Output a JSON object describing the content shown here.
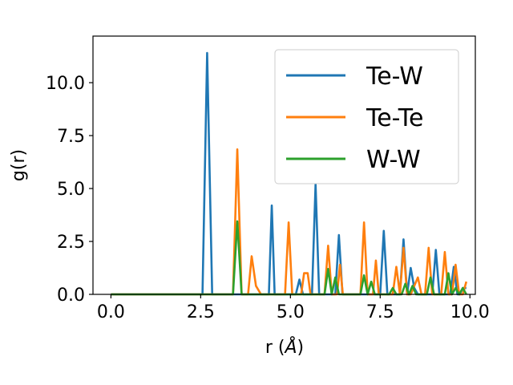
{
  "chart_data": {
    "type": "line",
    "xlabel": "r (",
    "xlabel_symbol": "Å",
    "xlabel_close": ")",
    "ylabel": "g(r)",
    "xlim": [
      -0.5,
      10.15
    ],
    "ylim": [
      0,
      12.2
    ],
    "xticks": [
      0,
      2.5,
      5,
      7.5,
      10
    ],
    "xtick_labels": [
      "0.0",
      "2.5",
      "5.0",
      "7.5",
      "10.0"
    ],
    "yticks": [
      0,
      2.5,
      5,
      7.5,
      10
    ],
    "ytick_labels": [
      "0.0",
      "2.5",
      "5.0",
      "7.5",
      "10.0"
    ],
    "grid": false,
    "legend_position": "top-right",
    "series": [
      {
        "name": "Te-W",
        "color": "#1f77b4",
        "x": [
          0,
          2.55,
          2.68,
          2.82,
          4.4,
          4.48,
          4.56,
          5.15,
          5.25,
          5.35,
          5.6,
          5.7,
          5.8,
          6.25,
          6.35,
          6.45,
          7.5,
          7.6,
          7.7,
          8.05,
          8.15,
          8.25,
          8.35,
          8.45,
          8.55,
          8.95,
          9.05,
          9.15,
          9.45,
          9.55,
          9.65,
          9.72,
          9.8,
          9.9
        ],
        "y": [
          0,
          0,
          11.4,
          0,
          0,
          4.2,
          0,
          0,
          0.7,
          0,
          0,
          5.2,
          0,
          0,
          2.8,
          0,
          0,
          3.0,
          0,
          0,
          2.6,
          0,
          1.25,
          0.3,
          0,
          0,
          2.1,
          0,
          0,
          1.3,
          0,
          0,
          0.3,
          0.3
        ]
      },
      {
        "name": "Te-Te",
        "color": "#ff7f0e",
        "x": [
          0,
          3.4,
          3.52,
          3.64,
          3.82,
          3.92,
          4.04,
          4.18,
          4.85,
          4.95,
          5.05,
          5.3,
          5.38,
          5.48,
          5.56,
          5.95,
          6.05,
          6.15,
          6.3,
          6.38,
          6.46,
          6.95,
          7.05,
          7.15,
          7.3,
          7.38,
          7.46,
          7.85,
          7.95,
          8.05,
          8.15,
          8.25,
          8.35,
          8.55,
          8.65,
          8.75,
          8.85,
          8.95,
          9.05,
          9.2,
          9.3,
          9.4,
          9.5,
          9.6,
          9.7,
          9.8,
          9.9
        ],
        "y": [
          0,
          0,
          6.85,
          0,
          0,
          1.8,
          0.4,
          0,
          0,
          3.4,
          0,
          0,
          1.0,
          1.0,
          0,
          0,
          2.3,
          0,
          0,
          1.4,
          0,
          0,
          3.4,
          0,
          0,
          1.6,
          0,
          0,
          1.3,
          0,
          2.2,
          0,
          0,
          0.8,
          0,
          0,
          2.2,
          0,
          0,
          0,
          2.0,
          0,
          0,
          1.4,
          0,
          0,
          0.6
        ]
      },
      {
        "name": "W-W",
        "color": "#2ca02c",
        "x": [
          0,
          3.4,
          3.52,
          3.64,
          5.95,
          6.05,
          6.15,
          6.25,
          6.35,
          6.95,
          7.05,
          7.15,
          7.25,
          7.35,
          7.75,
          7.85,
          7.95,
          8.1,
          8.2,
          8.3,
          8.4,
          8.5,
          8.8,
          8.9,
          9.0,
          9.3,
          9.4,
          9.5,
          9.6,
          9.7,
          9.8,
          9.9
        ],
        "y": [
          0,
          0,
          3.45,
          0,
          0,
          1.2,
          0,
          0.8,
          0,
          0,
          0.9,
          0,
          0.6,
          0,
          0,
          0.3,
          0,
          0,
          0.5,
          0,
          0.4,
          0,
          0,
          0.8,
          0,
          0,
          1.0,
          0,
          0.3,
          0,
          0.3,
          0
        ]
      }
    ]
  }
}
